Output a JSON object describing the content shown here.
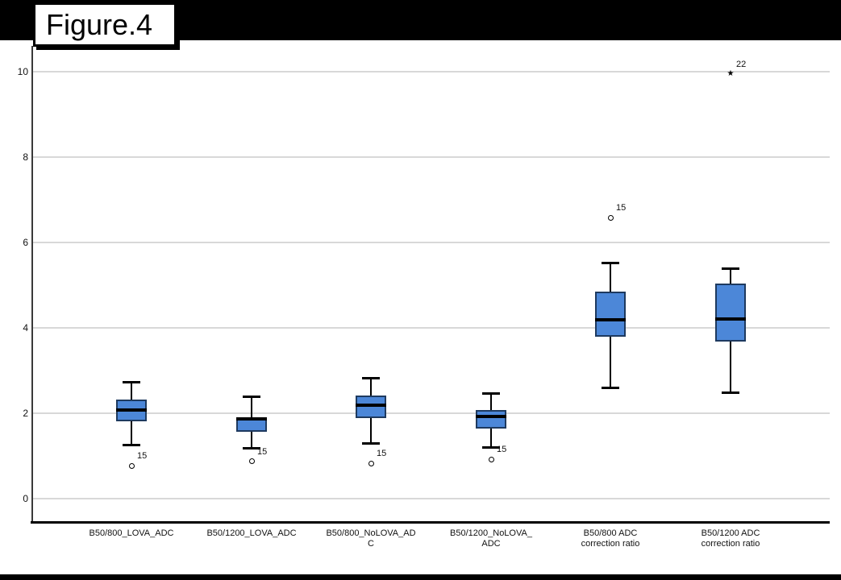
{
  "figure_label": "Figure.4",
  "colors": {
    "banner": "#000000",
    "background": "#ffffff",
    "box_fill": "#4c87d8",
    "box_border": "#1e3a5f",
    "median": "#000000",
    "whisker": "#000000",
    "gridline": "#d8d8d8",
    "axis": "#000000"
  },
  "chart_data": {
    "type": "boxplot",
    "title": "Figure.4",
    "xlabel": "",
    "ylabel": "",
    "ylim": [
      0,
      10
    ],
    "yticks": [
      0,
      2,
      4,
      6,
      8,
      10
    ],
    "grid": true,
    "categories": [
      "B50/800_LOVA_ADC",
      "B50/1200_LOVA_ADC",
      "B50/800_NoLOVA_ADC",
      "B50/1200_NoLOVA_ADC",
      "B50/800 ADC correction ratio",
      "B50/1200 ADC correction ratio"
    ],
    "category_label_lines": [
      [
        "B50/800_LOVA_ADC"
      ],
      [
        "B50/1200_LOVA_ADC"
      ],
      [
        "B50/800_NoLOVA_AD",
        "C"
      ],
      [
        "B50/1200_NoLOVA_",
        "ADC"
      ],
      [
        "B50/800 ADC",
        "correction ratio"
      ],
      [
        "B50/1200 ADC",
        "correction ratio"
      ]
    ],
    "series": [
      {
        "name": "B50/800_LOVA_ADC",
        "whisker_low": 1.25,
        "q1": 1.81,
        "median": 2.07,
        "q3": 2.33,
        "whisker_high": 2.74,
        "outliers": [
          {
            "value": 0.77,
            "label": "15",
            "marker": "circle"
          }
        ]
      },
      {
        "name": "B50/1200_LOVA_ADC",
        "whisker_low": 1.17,
        "q1": 1.57,
        "median": 1.86,
        "q3": 1.91,
        "whisker_high": 2.4,
        "outliers": [
          {
            "value": 0.87,
            "label": "15",
            "marker": "circle"
          }
        ]
      },
      {
        "name": "B50/800_NoLOVA_ADC",
        "whisker_low": 1.28,
        "q1": 1.89,
        "median": 2.19,
        "q3": 2.42,
        "whisker_high": 2.83,
        "outliers": [
          {
            "value": 0.83,
            "label": "15",
            "marker": "circle"
          }
        ]
      },
      {
        "name": "B50/1200_NoLOVA_ADC",
        "whisker_low": 1.19,
        "q1": 1.64,
        "median": 1.93,
        "q3": 2.08,
        "whisker_high": 2.47,
        "outliers": [
          {
            "value": 0.92,
            "label": "15",
            "marker": "circle"
          }
        ]
      },
      {
        "name": "B50/800 ADC correction ratio",
        "whisker_low": 2.58,
        "q1": 3.79,
        "median": 4.19,
        "q3": 4.85,
        "whisker_high": 5.53,
        "outliers": [
          {
            "value": 6.58,
            "label": "15",
            "marker": "circle"
          }
        ]
      },
      {
        "name": "B50/1200 ADC correction ratio",
        "whisker_low": 2.47,
        "q1": 3.68,
        "median": 4.21,
        "q3": 5.04,
        "whisker_high": 5.4,
        "outliers": [
          {
            "value": 9.95,
            "label": "22",
            "marker": "star"
          }
        ]
      }
    ]
  }
}
